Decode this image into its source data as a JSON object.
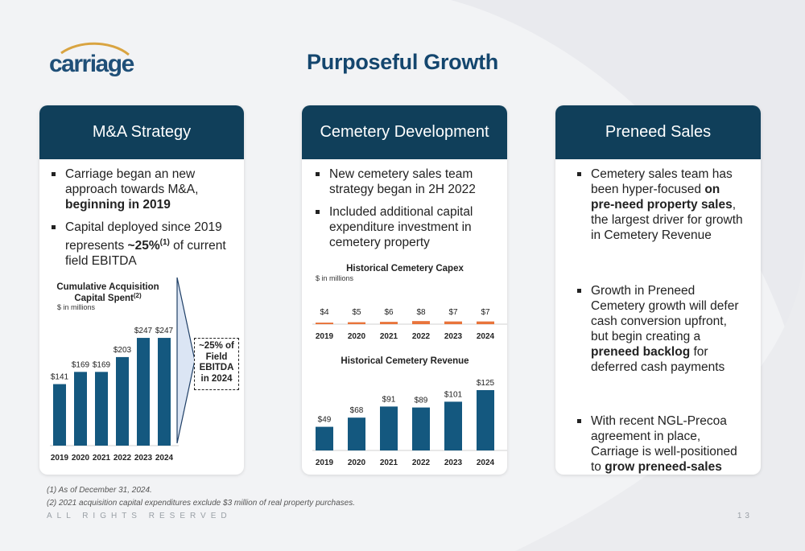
{
  "header": {
    "logo_text": "carriage",
    "title": "Purposeful Growth"
  },
  "cards": {
    "ma": {
      "title": "M&A Strategy",
      "b1": {
        "pre": "Carriage began an new approach towards M&A, ",
        "bold": "beginning in 2019"
      },
      "b2": {
        "pre": "Capital deployed since 2019 represents ",
        "bold": "~25%",
        "sup": "(1)",
        "post": " of current field EBITDA"
      }
    },
    "cemetery": {
      "title": "Cemetery Development",
      "b1": "New cemetery sales team strategy began in 2H 2022",
      "b2": "Included additional capital expenditure investment in cemetery property"
    },
    "preneed": {
      "title": "Preneed Sales",
      "b1": {
        "pre": "Cemetery sales team has been hyper-focused ",
        "bold": "on pre-need property sales",
        "post": ", the largest driver for growth in Cemetery Revenue"
      },
      "b2": {
        "pre": "Growth in Preneed Cemetery growth will defer cash conversion upfront, but begin creating a ",
        "bold": "preneed backlog",
        "post": " for deferred cash payments"
      },
      "b3": {
        "pre": "With recent NGL-Precoa agreement in place, Carriage is well-positioned to ",
        "bold": "grow preneed-sales commission revenue"
      }
    }
  },
  "callout": {
    "line1": "~25% of",
    "line2": "Field",
    "line3": "EBITDA",
    "line4": "in 2024"
  },
  "chart_data": [
    {
      "type": "bar",
      "title": "Cumulative Acquisition Capital Spent",
      "title_sup": "(2)",
      "unit_note": "$ in millions",
      "categories": [
        "2019",
        "2020",
        "2021",
        "2022",
        "2023",
        "2024"
      ],
      "values": [
        141,
        169,
        169,
        203,
        247,
        247
      ],
      "labels": [
        "$141",
        "$169",
        "$169",
        "$203",
        "$247",
        "$247"
      ],
      "ylim": [
        0,
        260
      ],
      "color": "#14587f"
    },
    {
      "type": "bar",
      "title": "Historical Cemetery Capex",
      "unit_note": "$ in millions",
      "categories": [
        "2019",
        "2020",
        "2021",
        "2022",
        "2023",
        "2024"
      ],
      "values": [
        4,
        5,
        6,
        8,
        7,
        7
      ],
      "labels": [
        "$4",
        "$5",
        "$6",
        "$8",
        "$7",
        "$7"
      ],
      "ylim": [
        0,
        125
      ],
      "color": "#e8743b"
    },
    {
      "type": "bar",
      "title": "Historical Cemetery Revenue",
      "categories": [
        "2019",
        "2020",
        "2021",
        "2022",
        "2023",
        "2024"
      ],
      "values": [
        49,
        68,
        91,
        89,
        101,
        125
      ],
      "labels": [
        "$49",
        "$68",
        "$91",
        "$89",
        "$101",
        "$125"
      ],
      "ylim": [
        0,
        130
      ],
      "color": "#14587f"
    }
  ],
  "footnotes": {
    "f1": "(1)   As of December 31, 2024.",
    "f2": "(2)   2021 acquisition capital expenditures exclude $3 million of real property purchases."
  },
  "footer": {
    "rights": "ALL RIGHTS RESERVED",
    "page": "13"
  }
}
